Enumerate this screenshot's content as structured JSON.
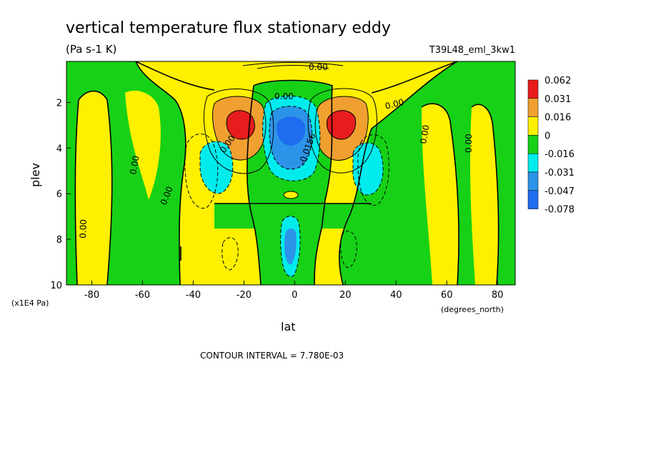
{
  "chart_data": {
    "type": "heatmap",
    "title": "vertical temperature flux stationary eddy",
    "subtitle": "(Pa s-1 K)",
    "run_label": "T39L48_eml_3kw1",
    "xlabel": "lat",
    "ylabel": "plev",
    "x_units": "(degrees_north)",
    "y_units": "(x1E4 Pa)",
    "footer": "CONTOUR INTERVAL = 7.780E-03",
    "xlim": [
      -90,
      87
    ],
    "ylim": [
      10,
      0.2
    ],
    "x_ticks": [
      -80,
      -60,
      -40,
      -20,
      0,
      20,
      40,
      60,
      80
    ],
    "y_ticks": [
      2,
      4,
      6,
      8,
      10
    ],
    "contour_labels": [
      "0.00",
      "0.00",
      "0.00",
      "0.00",
      "0.00",
      "0.00",
      "0.00",
      "0.00",
      "0.00",
      "-0.0156"
    ],
    "colorbar": {
      "levels": [
        "0.062",
        "0.031",
        "0.016",
        "0",
        "-0.016",
        "-0.031",
        "-0.047",
        "-0.078"
      ],
      "colors": [
        "#e81c1c",
        "#f0a030",
        "#fff000",
        "#16d116",
        "#00ecec",
        "#2c94e8",
        "#1e6cf0"
      ]
    },
    "features": [
      {
        "type": "max",
        "lat": -20,
        "plev": 2.8,
        "value": 0.062
      },
      {
        "type": "max",
        "lat": 20,
        "plev": 2.8,
        "value": 0.062
      },
      {
        "type": "min",
        "lat": 0,
        "plev": 3.0,
        "value": -0.078
      },
      {
        "type": "min",
        "lat": -31,
        "plev": 4.8,
        "value": -0.031
      },
      {
        "type": "min",
        "lat": 29,
        "plev": 4.8,
        "value": -0.031
      },
      {
        "type": "min",
        "lat": 0,
        "plev": 8.5,
        "value": -0.047
      }
    ],
    "grid": false
  }
}
